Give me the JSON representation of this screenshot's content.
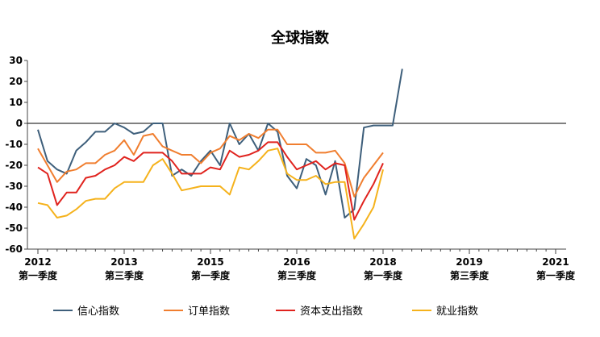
{
  "chart_data": {
    "type": "line",
    "title": "全球指数",
    "ylim": [
      -60,
      30
    ],
    "yticks": [
      30,
      20,
      10,
      0,
      -10,
      -20,
      -30,
      -40,
      -50,
      -60
    ],
    "x_tick_labels": [
      {
        "year": "2012",
        "quarter": "第一季度",
        "index": 0
      },
      {
        "year": "2013",
        "quarter": "第三季度",
        "index": 9
      },
      {
        "year": "2015",
        "quarter": "第一季度",
        "index": 18
      },
      {
        "year": "2016",
        "quarter": "第三季度",
        "index": 27
      },
      {
        "year": "2018",
        "quarter": "第一季度",
        "index": 36
      },
      {
        "year": "2019",
        "quarter": "第三季度",
        "index": 45
      },
      {
        "year": "2021",
        "quarter": "第一季度",
        "index": 54
      }
    ],
    "x_count": 55,
    "legend_position": "bottom",
    "series": [
      {
        "name": "信心指数",
        "color": "#3e5f7b",
        "values": [
          -3,
          -18,
          -22,
          -24,
          -13,
          -9,
          -4,
          -4,
          0,
          -2,
          -5,
          -4,
          0,
          0,
          -25,
          -22,
          -25,
          -18,
          -13,
          -20,
          0,
          -10,
          -5,
          -13,
          0,
          -4,
          -25,
          -31,
          -17,
          -20,
          -34,
          -18,
          -45,
          -41,
          -2,
          -1,
          -1,
          -1,
          26
        ]
      },
      {
        "name": "订单指数",
        "color": "#f07e2f",
        "values": [
          -12,
          -20,
          -28,
          -23,
          -22,
          -19,
          -19,
          -15,
          -13,
          -8,
          -15,
          -6,
          -5,
          -11,
          -13,
          -15,
          -15,
          -19,
          -14,
          -12,
          -6,
          -8,
          -5,
          -7,
          -3,
          -3,
          -10,
          -10,
          -10,
          -14,
          -14,
          -13,
          -19,
          -35,
          -26,
          -20,
          -14
        ]
      },
      {
        "name": "资本支出指数",
        "color": "#e0231e",
        "values": [
          -21,
          -24,
          -39,
          -33,
          -33,
          -26,
          -25,
          -22,
          -20,
          -16,
          -18,
          -14,
          -14,
          -14,
          -18,
          -24,
          -24,
          -24,
          -21,
          -22,
          -13,
          -16,
          -15,
          -13,
          -9,
          -9,
          -16,
          -22,
          -20,
          -18,
          -22,
          -19,
          -20,
          -46,
          -37,
          -29,
          -19
        ]
      },
      {
        "name": "就业指数",
        "color": "#f5b21c",
        "values": [
          -38,
          -39,
          -45,
          -44,
          -41,
          -37,
          -36,
          -36,
          -31,
          -28,
          -28,
          -28,
          -20,
          -17,
          -24,
          -32,
          -31,
          -30,
          -30,
          -30,
          -34,
          -21,
          -22,
          -18,
          -13,
          -12,
          -24,
          -27,
          -27,
          -25,
          -29,
          -28,
          -28,
          -55,
          -48,
          -40,
          -22
        ]
      }
    ]
  }
}
